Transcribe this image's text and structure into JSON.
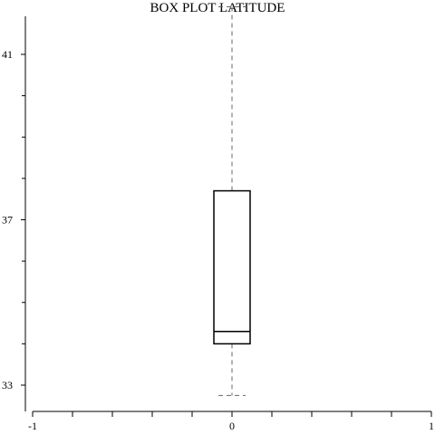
{
  "chart_data": {
    "type": "box",
    "title": "BOX PLOT LATITUDE",
    "xlabel": "",
    "ylabel": "",
    "xlim": [
      -1,
      1
    ],
    "ylim": [
      32.6,
      42.0
    ],
    "x_ticks": [
      -1,
      0,
      1
    ],
    "x_minor_ticks": [
      -0.8,
      -0.6,
      -0.4,
      -0.2,
      0.2,
      0.4,
      0.6,
      0.8
    ],
    "y_ticks": [
      33,
      37,
      41
    ],
    "y_minor_ticks": [
      34,
      35,
      36,
      38,
      39,
      40
    ],
    "grid": false,
    "box": {
      "x": 0,
      "whisker_low": 32.75,
      "q1": 34.0,
      "median": 34.3,
      "q3": 37.7,
      "whisker_high": 42.15
    }
  }
}
